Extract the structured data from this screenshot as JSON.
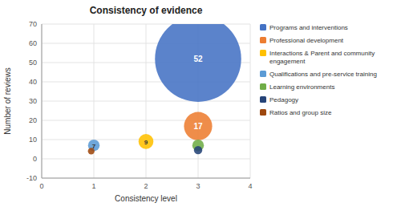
{
  "chart_data": {
    "type": "scatter",
    "title": "Consistency of evidence",
    "xlabel": "Consistency level",
    "ylabel": "Number of reviews",
    "xlim": [
      0,
      4
    ],
    "ylim": [
      -10,
      70
    ],
    "xticks": [
      0,
      1,
      2,
      3,
      4
    ],
    "yticks": [
      -10,
      0,
      10,
      20,
      30,
      40,
      50,
      60,
      70
    ],
    "grid": true,
    "legend": "right",
    "data_labels": true,
    "series": [
      {
        "name": "Programs and interventions",
        "color": "#4472C4",
        "x": [
          3
        ],
        "values": [
          52
        ],
        "sizes": [
          52
        ],
        "value_labels": [
          "52"
        ]
      },
      {
        "name": "Professional development",
        "color": "#ED7D31",
        "x": [
          3
        ],
        "values": [
          17
        ],
        "sizes": [
          17
        ],
        "value_labels": [
          "17"
        ]
      },
      {
        "name": "Interactions & Parent and community\nengagement",
        "color": "#FFC000",
        "x": [
          2
        ],
        "values": [
          9
        ],
        "sizes": [
          9
        ],
        "value_labels": [
          "9"
        ]
      },
      {
        "name": "Qualifications and pre-service training",
        "color": "#5B9BD5",
        "x": [
          1
        ],
        "values": [
          7
        ],
        "sizes": [
          7
        ],
        "value_labels": [
          "7"
        ]
      },
      {
        "name": "Learning environments",
        "color": "#70AD47",
        "x": [
          3
        ],
        "values": [
          7
        ],
        "sizes": [
          7
        ]
      },
      {
        "name": "Pedagogy",
        "color": "#264478",
        "x": [
          3
        ],
        "values": [
          4.5
        ],
        "sizes": [
          5
        ]
      },
      {
        "name": "Ratios and group size",
        "color": "#9E480E",
        "x": [
          0.95
        ],
        "values": [
          4
        ],
        "sizes": [
          4
        ]
      }
    ]
  }
}
